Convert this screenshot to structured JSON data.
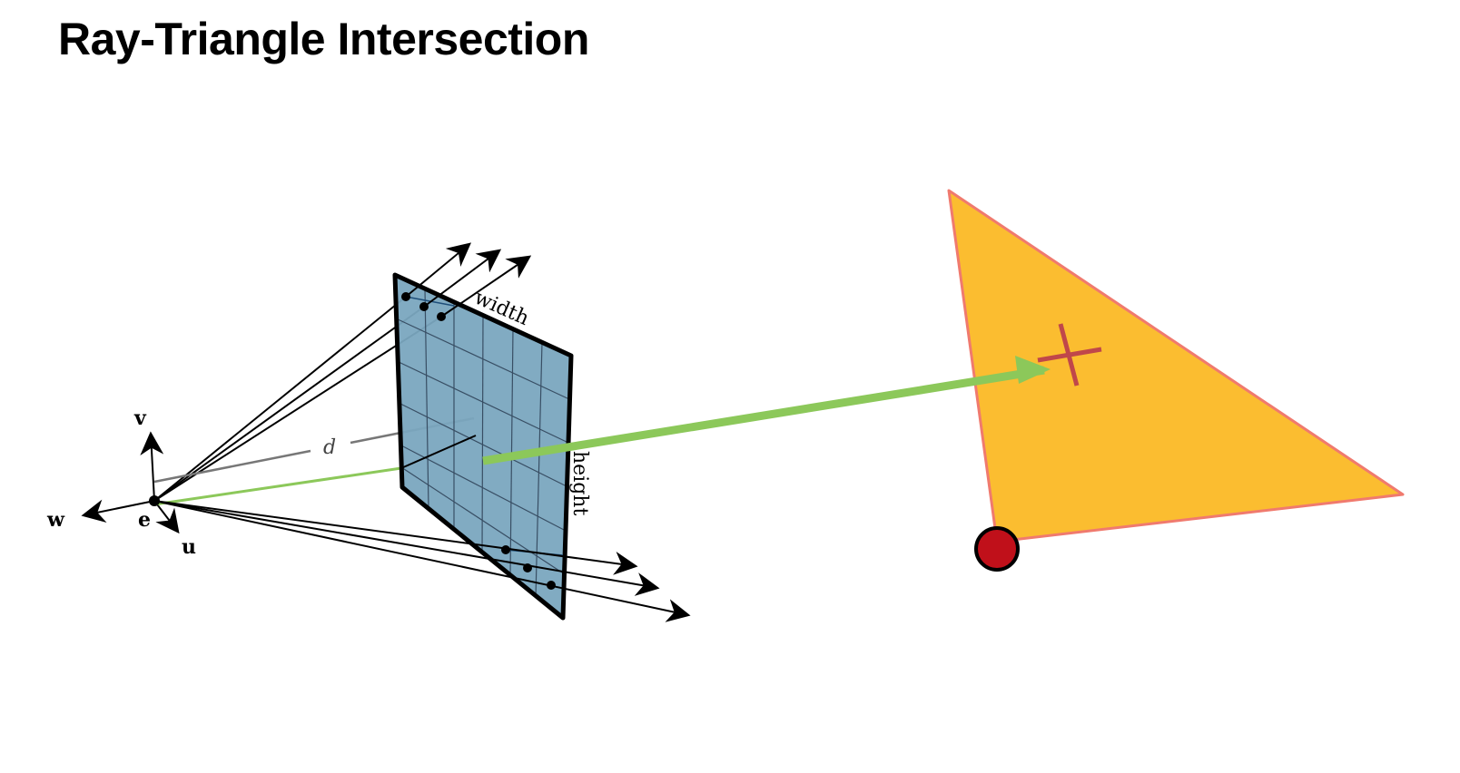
{
  "title": "Ray-Triangle Intersection",
  "labels": {
    "v": "v",
    "w": "w",
    "e": "e",
    "u": "u",
    "d": "d",
    "width": "width",
    "height": "height"
  },
  "colors": {
    "plane_fill": "#7aa6bf",
    "triangle_fill": "#fbbd30",
    "triangle_edge": "#f07a6e",
    "ray": "#8cc85a",
    "cross": "#c0474a",
    "vertex_dot": "#c0101a"
  }
}
